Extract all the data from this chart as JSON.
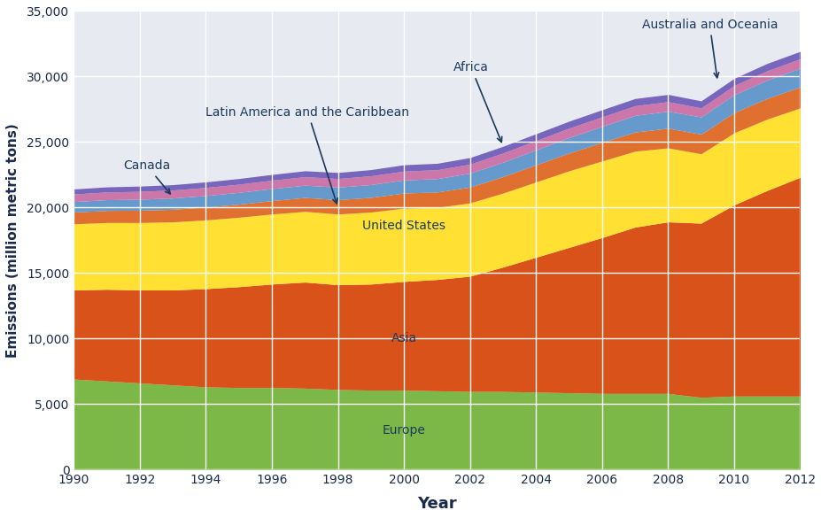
{
  "years": [
    1990,
    1991,
    1992,
    1993,
    1994,
    1995,
    1996,
    1997,
    1998,
    1999,
    2000,
    2001,
    2002,
    2003,
    2004,
    2005,
    2006,
    2007,
    2008,
    2009,
    2010,
    2011,
    2012
  ],
  "europe": [
    6900,
    6750,
    6600,
    6450,
    6300,
    6250,
    6250,
    6200,
    6100,
    6050,
    6050,
    6000,
    5950,
    5950,
    5900,
    5850,
    5800,
    5800,
    5800,
    5500,
    5600,
    5600,
    5600
  ],
  "asia": [
    6800,
    7000,
    7100,
    7250,
    7500,
    7700,
    7900,
    8100,
    8000,
    8100,
    8300,
    8500,
    8800,
    9500,
    10300,
    11100,
    11900,
    12700,
    13100,
    13300,
    14600,
    15700,
    16700
  ],
  "united_states": [
    5050,
    5100,
    5150,
    5200,
    5250,
    5300,
    5350,
    5400,
    5400,
    5500,
    5600,
    5500,
    5600,
    5650,
    5750,
    5850,
    5850,
    5800,
    5650,
    5300,
    5500,
    5450,
    5300
  ],
  "latin_america": [
    900,
    920,
    940,
    960,
    980,
    1000,
    1020,
    1060,
    1090,
    1120,
    1150,
    1180,
    1210,
    1260,
    1310,
    1360,
    1420,
    1460,
    1500,
    1500,
    1550,
    1580,
    1600
  ],
  "africa": [
    800,
    820,
    840,
    860,
    880,
    900,
    920,
    940,
    960,
    980,
    1000,
    1020,
    1060,
    1100,
    1140,
    1180,
    1220,
    1270,
    1300,
    1310,
    1360,
    1400,
    1430
  ],
  "canada": [
    580,
    590,
    600,
    610,
    620,
    630,
    640,
    650,
    660,
    670,
    680,
    680,
    690,
    700,
    710,
    720,
    730,
    740,
    730,
    690,
    700,
    710,
    720
  ],
  "australia": [
    380,
    390,
    400,
    410,
    420,
    430,
    440,
    450,
    460,
    470,
    480,
    490,
    500,
    510,
    520,
    530,
    540,
    550,
    550,
    540,
    550,
    560,
    570
  ],
  "colors": {
    "europe": "#7cb847",
    "asia": "#d95219",
    "united_states": "#ffe033",
    "latin_america": "#e07030",
    "africa": "#6699cc",
    "canada": "#cc77aa",
    "australia": "#7766bb"
  },
  "background_color": "#e8eaf2",
  "ylabel": "Emissions (million metric tons)",
  "xlabel": "Year",
  "ylim": [
    0,
    35000
  ],
  "yticks": [
    0,
    5000,
    10000,
    15000,
    20000,
    25000,
    30000,
    35000
  ],
  "xticks": [
    1990,
    1992,
    1994,
    1996,
    1998,
    2000,
    2002,
    2004,
    2006,
    2008,
    2010,
    2012
  ],
  "annotation_color": "#1a3a5c",
  "annotation_fontsize": 10
}
